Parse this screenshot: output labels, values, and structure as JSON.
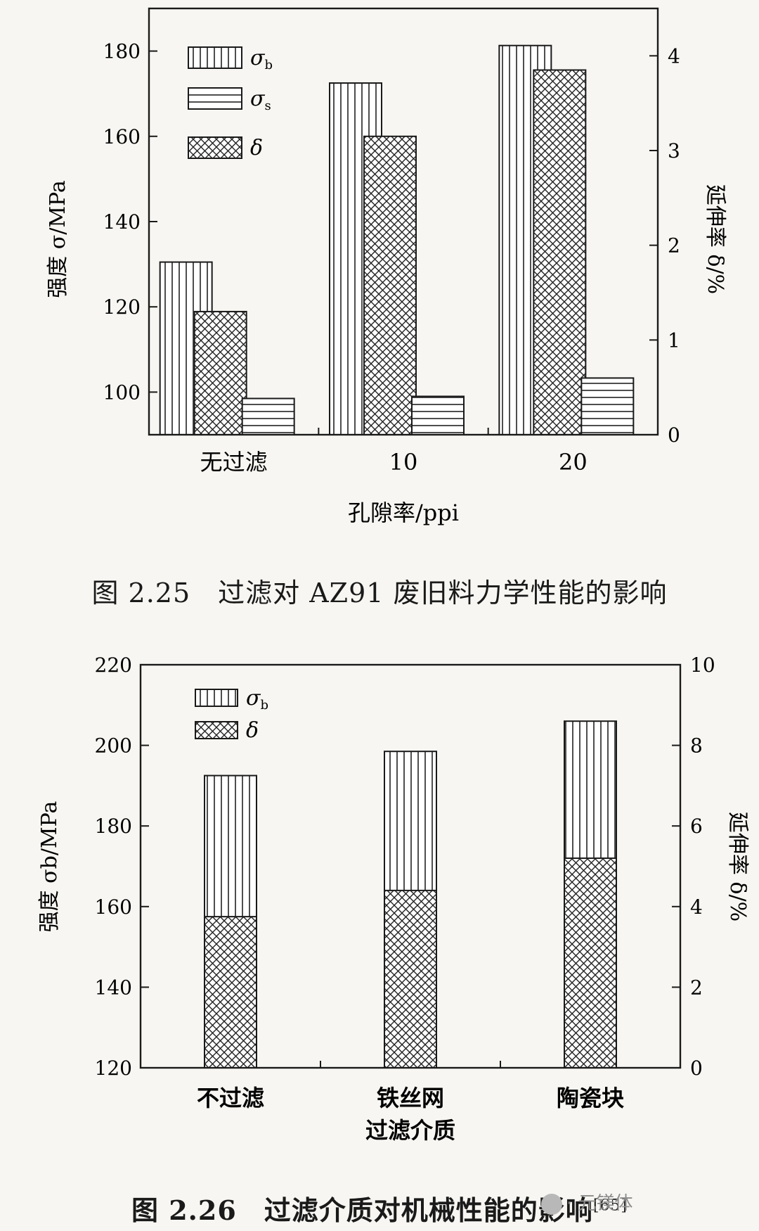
{
  "chart_data": [
    {
      "type": "bar",
      "categories": [
        "无过滤",
        "10",
        "20"
      ],
      "xlabel": "孔隙率/ppi",
      "ylabel_left": "强度 σ/MPa",
      "ylabel_right": "延伸率 δ/%",
      "ylim_left": [
        90,
        190
      ],
      "yticks_left": [
        100,
        120,
        140,
        160,
        180
      ],
      "ylim_right": [
        0,
        4.5
      ],
      "yticks_right": [
        0,
        1,
        2,
        3,
        4
      ],
      "series": [
        {
          "name": "σb",
          "axis": "left",
          "pattern": "vertical",
          "values": [
            130.5,
            172.5,
            181.3
          ]
        },
        {
          "name": "δ",
          "axis": "right",
          "pattern": "crosshatch",
          "values": [
            1.3,
            3.15,
            3.85
          ]
        },
        {
          "name": "σs",
          "axis": "left",
          "pattern": "horizontal",
          "values": [
            98.5,
            99,
            103.3
          ]
        }
      ],
      "legend": [
        {
          "symbol": "σ",
          "sub": "b",
          "pattern": "vertical"
        },
        {
          "symbol": "σ",
          "sub": "s",
          "pattern": "horizontal"
        },
        {
          "symbol": "δ",
          "sub": "",
          "pattern": "crosshatch"
        }
      ],
      "legend_position": "top-left",
      "caption": "图 2.25　过滤对 AZ91 废旧料力学性能的影响"
    },
    {
      "type": "bar",
      "categories": [
        "不过滤",
        "铁丝网",
        "陶瓷块"
      ],
      "xlabel": "过滤介质",
      "ylabel_left": "强度 σb/MPa",
      "ylabel_right": "延伸率 δ/%",
      "ylim_left": [
        120,
        220
      ],
      "yticks_left": [
        120,
        140,
        160,
        180,
        200,
        220
      ],
      "ylim_right": [
        0,
        10
      ],
      "yticks_right": [
        0,
        2,
        4,
        6,
        8,
        10
      ],
      "series": [
        {
          "name": "σb",
          "axis": "left",
          "pattern": "vertical",
          "values": [
            192.5,
            198.5,
            206
          ]
        },
        {
          "name": "δ",
          "axis": "right",
          "pattern": "crosshatch",
          "values": [
            3.75,
            4.4,
            5.2
          ]
        }
      ],
      "legend": [
        {
          "symbol": "σ",
          "sub": "b",
          "pattern": "vertical"
        },
        {
          "symbol": "δ",
          "sub": "",
          "pattern": "crosshatch"
        }
      ],
      "legend_position": "top-left",
      "caption_main": "图 2.26　过滤介质对机械性能的影响",
      "caption_ref": "[65]"
    }
  ],
  "watermark": {
    "text": "· 元镁体"
  }
}
